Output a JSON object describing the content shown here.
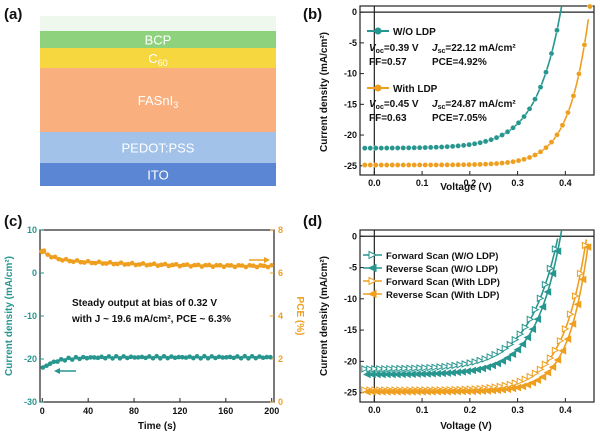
{
  "panel_labels": {
    "a": "(a)",
    "b": "(b)",
    "c": "(c)",
    "d": "(d)"
  },
  "device_stack": {
    "layers": [
      {
        "label": "",
        "color": "#eef8ec"
      },
      {
        "label": "BCP",
        "color": "#8fd27e"
      },
      {
        "label": "C60",
        "color": "#f7d73f"
      },
      {
        "label": "FASnI3",
        "color": "#f9b07e"
      },
      {
        "label": "PEDOT:PSS",
        "color": "#a2c2ea"
      },
      {
        "label": "ITO",
        "color": "#5a86d4"
      }
    ]
  },
  "chart_data": [
    {
      "id": "b",
      "type": "line",
      "xlabel": "Voltage (V)",
      "ylabel": "Current density (mA/cm²)",
      "xlim": [
        -0.03,
        0.46
      ],
      "ylim": [
        -26.5,
        1
      ],
      "xticks": [
        0.0,
        0.1,
        0.2,
        0.3,
        0.4
      ],
      "xtick_labels": [
        "0.0",
        "0.1",
        "0.2",
        "0.3",
        "0.4"
      ],
      "yticks": [
        0,
        -5,
        -10,
        -15,
        -20,
        -25
      ],
      "ytick_labels": [
        "0",
        "-5",
        "-10",
        "-15",
        "-20",
        "-25"
      ],
      "series": [
        {
          "name": "W/O LDP",
          "color": "#27968f",
          "marker": "circle",
          "voc": 0.39,
          "jsc": 22.12,
          "ff": 0.57,
          "label_voc": "=0.39 V",
          "label_jsc": "=22.12 mA/cm²",
          "label_ff": "FF=0.57",
          "label_pce": "PCE=4.92%"
        },
        {
          "name": "With LDP",
          "color": "#ef9f1f",
          "marker": "circle",
          "voc": 0.45,
          "jsc": 24.87,
          "ff": 0.63,
          "label_voc": "=0.45 V",
          "label_jsc": "=24.87 mA/cm²",
          "label_ff": "FF=0.63",
          "label_pce": "PCE=7.05%"
        }
      ]
    },
    {
      "id": "c",
      "type": "line",
      "xlabel": "Time (s)",
      "ylabel_left": "Current density (mA/cm²)",
      "ylabel_right": "PCE (%)",
      "xlim": [
        -2,
        202
      ],
      "ylim_left": [
        -30,
        10
      ],
      "ylim_right": [
        0,
        8
      ],
      "xticks": [
        0,
        40,
        80,
        120,
        160,
        200
      ],
      "yticks_left": [
        10,
        0,
        -10,
        -20,
        -30
      ],
      "yticks_right": [
        0,
        2,
        4,
        6,
        8
      ],
      "annotation_line1": "Steady output at bias of 0.32 V",
      "annotation_line2": "with J ~ 19.6 mA/cm², PCE ~ 6.3%",
      "series": [
        {
          "name": "Current density",
          "axis": "left",
          "color": "#27968f",
          "start": -22.2,
          "steady": -19.6
        },
        {
          "name": "PCE",
          "axis": "right",
          "color": "#ef9f1f",
          "start": 7.0,
          "steady": 6.3
        }
      ]
    },
    {
      "id": "d",
      "type": "line",
      "xlabel": "Voltage (V)",
      "ylabel": "Current density (mA/cm²)",
      "xlim": [
        -0.03,
        0.46
      ],
      "ylim": [
        -26.5,
        1
      ],
      "xticks": [
        0.0,
        0.1,
        0.2,
        0.3,
        0.4
      ],
      "xtick_labels": [
        "0.0",
        "0.1",
        "0.2",
        "0.3",
        "0.4"
      ],
      "yticks": [
        0,
        -5,
        -10,
        -15,
        -20,
        -25
      ],
      "ytick_labels": [
        "0",
        "-5",
        "-10",
        "-15",
        "-20",
        "-25"
      ],
      "series": [
        {
          "name": "Forward Scan (W/O LDP)",
          "color": "#27968f",
          "dir": "right",
          "filled": false,
          "voc": 0.385,
          "jsc": 21.2,
          "ff": 0.53
        },
        {
          "name": "Reverse Scan (W/O LDP)",
          "color": "#27968f",
          "dir": "left",
          "filled": true,
          "voc": 0.39,
          "jsc": 22.1,
          "ff": 0.57
        },
        {
          "name": "Forward Scan (With LDP)",
          "color": "#ef9f1f",
          "dir": "right",
          "filled": false,
          "voc": 0.445,
          "jsc": 24.6,
          "ff": 0.59
        },
        {
          "name": "Reverse Scan (With LDP)",
          "color": "#ef9f1f",
          "dir": "left",
          "filled": true,
          "voc": 0.45,
          "jsc": 24.87,
          "ff": 0.63
        }
      ]
    }
  ]
}
